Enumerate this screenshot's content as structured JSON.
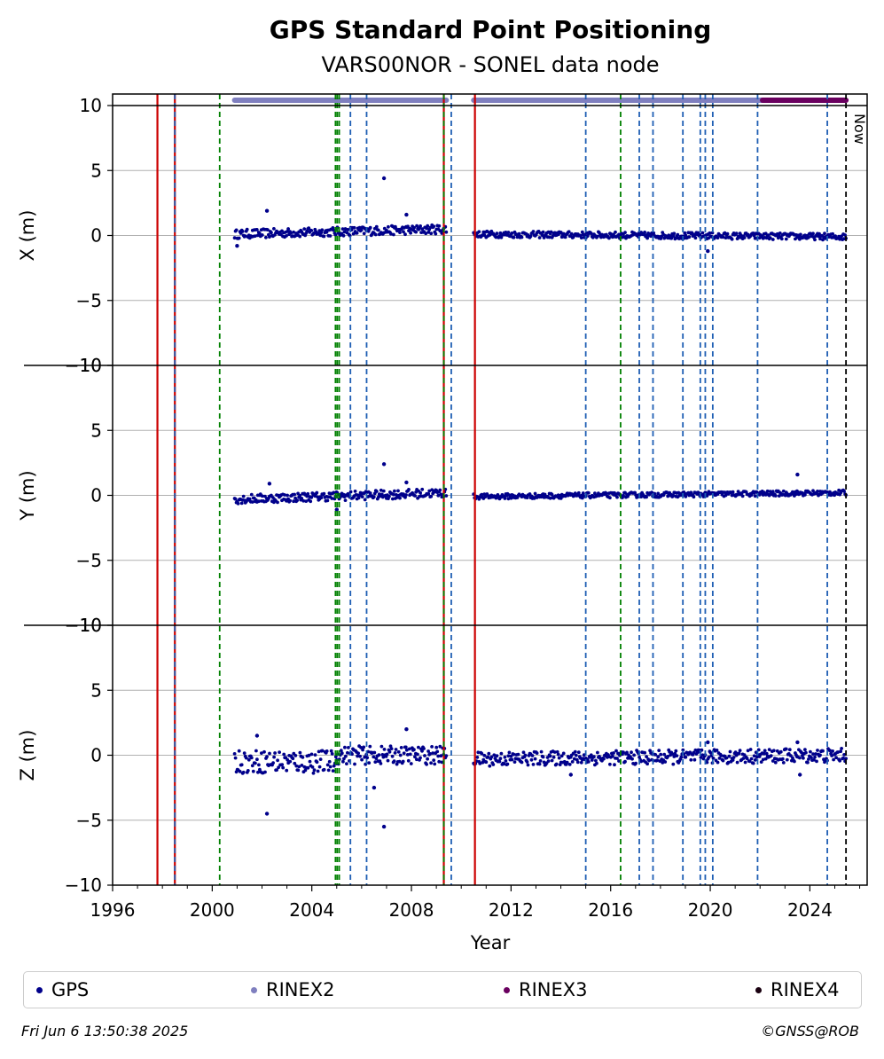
{
  "chart_data": {
    "type": "scatter",
    "title": "GPS Standard Point Positioning",
    "subtitle": "VARS00NOR - SONEL data node",
    "xlabel": "Year",
    "xlim": [
      1996,
      2026.3
    ],
    "xticks": [
      1996,
      2000,
      2004,
      2008,
      2012,
      2016,
      2020,
      2024
    ],
    "xtick_labels": [
      "1996",
      "2000",
      "2004",
      "2008",
      "2012",
      "2016",
      "2020",
      "2024"
    ],
    "grid": "horizontal",
    "legend_placement": "bottom",
    "panels": [
      {
        "ylabel": "X (m)",
        "ylim": [
          -10,
          10
        ],
        "yticks": [
          10,
          5,
          0,
          -5,
          -10
        ],
        "ytick_labels": [
          "10",
          "5",
          "0",
          "−5",
          "−10"
        ],
        "segments": [
          {
            "x_start": 2000.9,
            "x_end": 2009.4,
            "y_start": 0.1,
            "y_end": 0.5,
            "spread": 0.35
          },
          {
            "x_start": 2010.5,
            "x_end": 2025.45,
            "y_start": 0.1,
            "y_end": -0.1,
            "spread": 0.25
          }
        ],
        "outliers": [
          [
            2002.2,
            1.9
          ],
          [
            2006.9,
            4.4
          ],
          [
            2007.8,
            1.6
          ],
          [
            2019.9,
            -1.2
          ],
          [
            2001.0,
            -0.8
          ]
        ]
      },
      {
        "ylabel": "Y (m)",
        "ylim": [
          -10,
          10
        ],
        "yticks": [
          10,
          5,
          0,
          -5,
          -10
        ],
        "ytick_labels": [
          "10",
          "5",
          "0",
          "−5",
          "−10"
        ],
        "segments": [
          {
            "x_start": 2000.9,
            "x_end": 2009.4,
            "y_start": -0.3,
            "y_end": 0.2,
            "spread": 0.35
          },
          {
            "x_start": 2010.5,
            "x_end": 2025.45,
            "y_start": -0.1,
            "y_end": 0.2,
            "spread": 0.2
          }
        ],
        "outliers": [
          [
            2006.9,
            2.4
          ],
          [
            2007.8,
            1.0
          ],
          [
            2023.5,
            1.6
          ],
          [
            2005.0,
            -1.1
          ],
          [
            2002.3,
            0.9
          ]
        ]
      },
      {
        "ylabel": "Z (m)",
        "ylim": [
          -10,
          10
        ],
        "yticks": [
          10,
          5,
          0,
          -5,
          -10
        ],
        "ytick_labels": [
          "10",
          "5",
          "0",
          "−5",
          "−10"
        ],
        "segments": [
          {
            "x_start": 2000.9,
            "x_end": 2005.0,
            "y_start": -0.5,
            "y_end": -0.5,
            "spread": 0.9
          },
          {
            "x_start": 2005.0,
            "x_end": 2009.4,
            "y_start": 0.0,
            "y_end": 0.0,
            "spread": 0.7
          },
          {
            "x_start": 2010.5,
            "x_end": 2025.45,
            "y_start": -0.3,
            "y_end": 0.0,
            "spread": 0.55
          }
        ],
        "outliers": [
          [
            2002.2,
            -4.5
          ],
          [
            2006.9,
            -5.5
          ],
          [
            2006.5,
            -2.5
          ],
          [
            2007.8,
            2.0
          ],
          [
            2001.8,
            1.5
          ],
          [
            2014.4,
            -1.5
          ],
          [
            2019.9,
            1.0
          ],
          [
            2023.5,
            1.0
          ],
          [
            2023.6,
            -1.5
          ]
        ]
      }
    ],
    "coverage_bars": [
      {
        "name": "RINEX2",
        "color": "#7f7fbf",
        "ranges": [
          [
            2000.9,
            2009.4
          ],
          [
            2010.5,
            2022.1
          ]
        ]
      },
      {
        "name": "RINEX3",
        "color": "#6a005f",
        "ranges": [
          [
            2022.1,
            2025.45
          ]
        ]
      }
    ],
    "event_lines": [
      {
        "x": 1997.8,
        "color": "#cc0000",
        "style": "solid"
      },
      {
        "x": 1998.5,
        "color": "#cc0000",
        "style": "solid"
      },
      {
        "x": 1998.5,
        "color": "#1f5fb4",
        "style": "dashed"
      },
      {
        "x": 2000.3,
        "color": "#008000",
        "style": "dashed"
      },
      {
        "x": 2004.95,
        "color": "#008000",
        "style": "dashed"
      },
      {
        "x": 2005.02,
        "color": "#008000",
        "style": "dashed"
      },
      {
        "x": 2005.1,
        "color": "#008000",
        "style": "dashed"
      },
      {
        "x": 2005.55,
        "color": "#1f5fb4",
        "style": "dashed"
      },
      {
        "x": 2006.2,
        "color": "#1f5fb4",
        "style": "dashed"
      },
      {
        "x": 2009.3,
        "color": "#cc0000",
        "style": "solid"
      },
      {
        "x": 2009.3,
        "color": "#008000",
        "style": "dashed"
      },
      {
        "x": 2009.6,
        "color": "#1f5fb4",
        "style": "dashed"
      },
      {
        "x": 2010.55,
        "color": "#cc0000",
        "style": "solid"
      },
      {
        "x": 2015.0,
        "color": "#1f5fb4",
        "style": "dashed"
      },
      {
        "x": 2016.4,
        "color": "#008000",
        "style": "dashed"
      },
      {
        "x": 2017.15,
        "color": "#1f5fb4",
        "style": "dashed"
      },
      {
        "x": 2017.7,
        "color": "#1f5fb4",
        "style": "dashed"
      },
      {
        "x": 2018.9,
        "color": "#1f5fb4",
        "style": "dashed"
      },
      {
        "x": 2019.6,
        "color": "#1f5fb4",
        "style": "dashed"
      },
      {
        "x": 2019.8,
        "color": "#1f5fb4",
        "style": "dashed"
      },
      {
        "x": 2020.1,
        "color": "#1f5fb4",
        "style": "dashed"
      },
      {
        "x": 2021.9,
        "color": "#1f5fb4",
        "style": "dashed"
      },
      {
        "x": 2024.7,
        "color": "#1f5fb4",
        "style": "dashed"
      },
      {
        "x": 2025.45,
        "color": "#000000",
        "style": "dashed"
      }
    ],
    "now_label": "Now",
    "series_colors": {
      "GPS": "#00008b",
      "RINEX2": "#7f7fbf",
      "RINEX3": "#6a005f",
      "RINEX4": "#1a0010"
    }
  },
  "legend": {
    "items": [
      {
        "label": "GPS",
        "color": "#00008b"
      },
      {
        "label": "RINEX2",
        "color": "#7f7fbf"
      },
      {
        "label": "RINEX3",
        "color": "#6a005f"
      },
      {
        "label": "RINEX4",
        "color": "#1a0010"
      }
    ]
  },
  "footer": {
    "timestamp": "Fri Jun  6 13:50:38 2025",
    "credit": "©GNSS@ROB"
  }
}
